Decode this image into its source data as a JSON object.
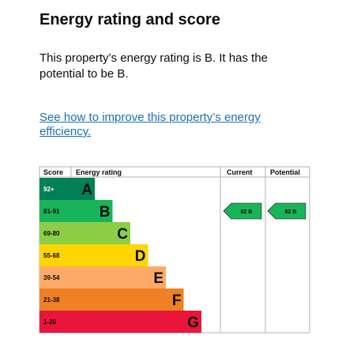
{
  "page": {
    "title": "Energy rating and score",
    "description": "This property’s energy rating is B. It has the potential to be B.",
    "improve_link": "See how to improve this property’s energy efficiency."
  },
  "chart_data": {
    "type": "bar",
    "headers": {
      "score": "Score",
      "rating": "Energy rating",
      "current": "Current",
      "potential": "Potential"
    },
    "bands": [
      {
        "range": "92+",
        "letter": "A",
        "color": "#008054",
        "score_bg": "#008054",
        "score_text": "#ffffff",
        "level": 1
      },
      {
        "range": "81-91",
        "letter": "B",
        "color": "#19b459",
        "score_bg": "#19b459",
        "score_text": "#0b0c0c",
        "level": 2
      },
      {
        "range": "69-80",
        "letter": "C",
        "color": "#8dce46",
        "score_bg": "#8dce46",
        "score_text": "#0b0c0c",
        "level": 3
      },
      {
        "range": "55-68",
        "letter": "D",
        "color": "#ffd500",
        "score_bg": "#ffd500",
        "score_text": "#0b0c0c",
        "level": 4
      },
      {
        "range": "39-54",
        "letter": "E",
        "color": "#fcaa65",
        "score_bg": "#fcaa65",
        "score_text": "#0b0c0c",
        "level": 5
      },
      {
        "range": "21-38",
        "letter": "F",
        "color": "#ef8023",
        "score_bg": "#ef8023",
        "score_text": "#0b0c0c",
        "level": 6
      },
      {
        "range": "1-20",
        "letter": "G",
        "color": "#e9153b",
        "score_bg": "#e9153b",
        "score_text": "#0b0c0c",
        "level": 7
      }
    ],
    "current": {
      "score": 82,
      "letter": "B",
      "label": "82 B",
      "band": "B"
    },
    "potential": {
      "score": 82,
      "letter": "B",
      "label": "82 B",
      "band": "B"
    }
  }
}
